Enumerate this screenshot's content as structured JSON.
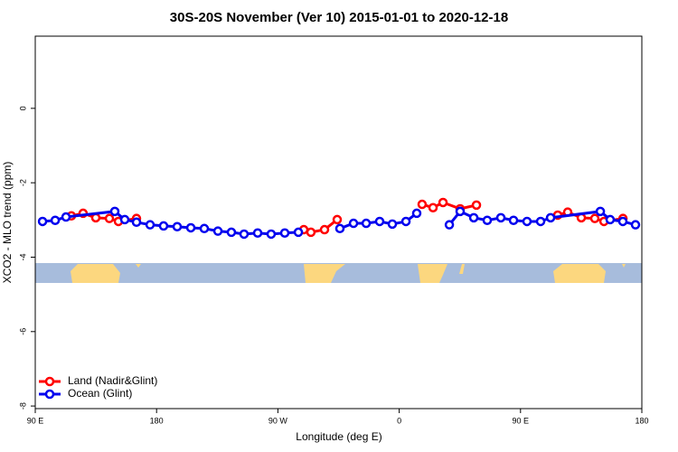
{
  "chart_data": {
    "type": "line",
    "title": "30S-20S November (Ver 10)   2015-01-01 to 2020-12-18",
    "xlabel": "Longitude (deg E)",
    "ylabel": "XCO2 - MLO trend (ppm)",
    "xlim": [
      90,
      540
    ],
    "xticks": [
      {
        "value": 90,
        "label": "90 E"
      },
      {
        "value": 180,
        "label": "180"
      },
      {
        "value": 270,
        "label": "90 W"
      },
      {
        "value": 360,
        "label": "0"
      },
      {
        "value": 450,
        "label": "90 E"
      },
      {
        "value": 540,
        "label": "180"
      }
    ],
    "ylim": [
      -8.07,
      1.94
    ],
    "yticks": [
      0,
      -2,
      -4,
      -6,
      -8
    ],
    "legend": "bottom-left",
    "series": [
      {
        "name": "Land (Nadir&Glint)",
        "color": "#ff0000",
        "x": [
          116.8,
          125.5,
          134.9,
          145,
          151.7,
          165.1,
          null,
          289.2,
          294.5,
          304.6,
          314,
          null,
          377,
          385.1,
          392.5,
          405.2,
          417.3,
          null,
          477.6,
          485,
          495.1,
          505.1,
          511.9,
          526
        ],
        "values": [
          -2.89,
          -2.82,
          -2.94,
          -2.96,
          -3.04,
          -2.96,
          null,
          -3.26,
          -3.33,
          -3.26,
          -2.99,
          null,
          -2.58,
          -2.67,
          -2.53,
          -2.7,
          -2.6,
          null,
          -2.87,
          -2.79,
          -2.94,
          -2.96,
          -3.04,
          -2.96
        ]
      },
      {
        "name": "Ocean (Glint)",
        "color": "#0000ee",
        "x": [
          95.4,
          104.8,
          112.8,
          149,
          156.4,
          165.1,
          175.2,
          185.2,
          195.3,
          205.4,
          215.4,
          225.5,
          235.5,
          244.9,
          255,
          265,
          275.1,
          285.2,
          null,
          316,
          326.1,
          335.5,
          345.5,
          354.9,
          365,
          373,
          null,
          397.2,
          405.2,
          415.3,
          425.3,
          435.4,
          444.8,
          454.8,
          464.9,
          472.3,
          509.2,
          516.5,
          525.9,
          535.3
        ],
        "values": [
          -3.04,
          -3.01,
          -2.92,
          -2.77,
          -2.99,
          -3.06,
          -3.13,
          -3.16,
          -3.18,
          -3.21,
          -3.23,
          -3.3,
          -3.33,
          -3.38,
          -3.35,
          -3.38,
          -3.35,
          -3.33,
          null,
          -3.23,
          -3.09,
          -3.09,
          -3.04,
          -3.11,
          -3.04,
          -2.82,
          null,
          -3.13,
          -2.77,
          -2.94,
          -3.01,
          -2.94,
          -3.01,
          -3.04,
          -3.04,
          -2.94,
          -2.77,
          -2.99,
          -3.04,
          -3.13
        ]
      }
    ]
  }
}
